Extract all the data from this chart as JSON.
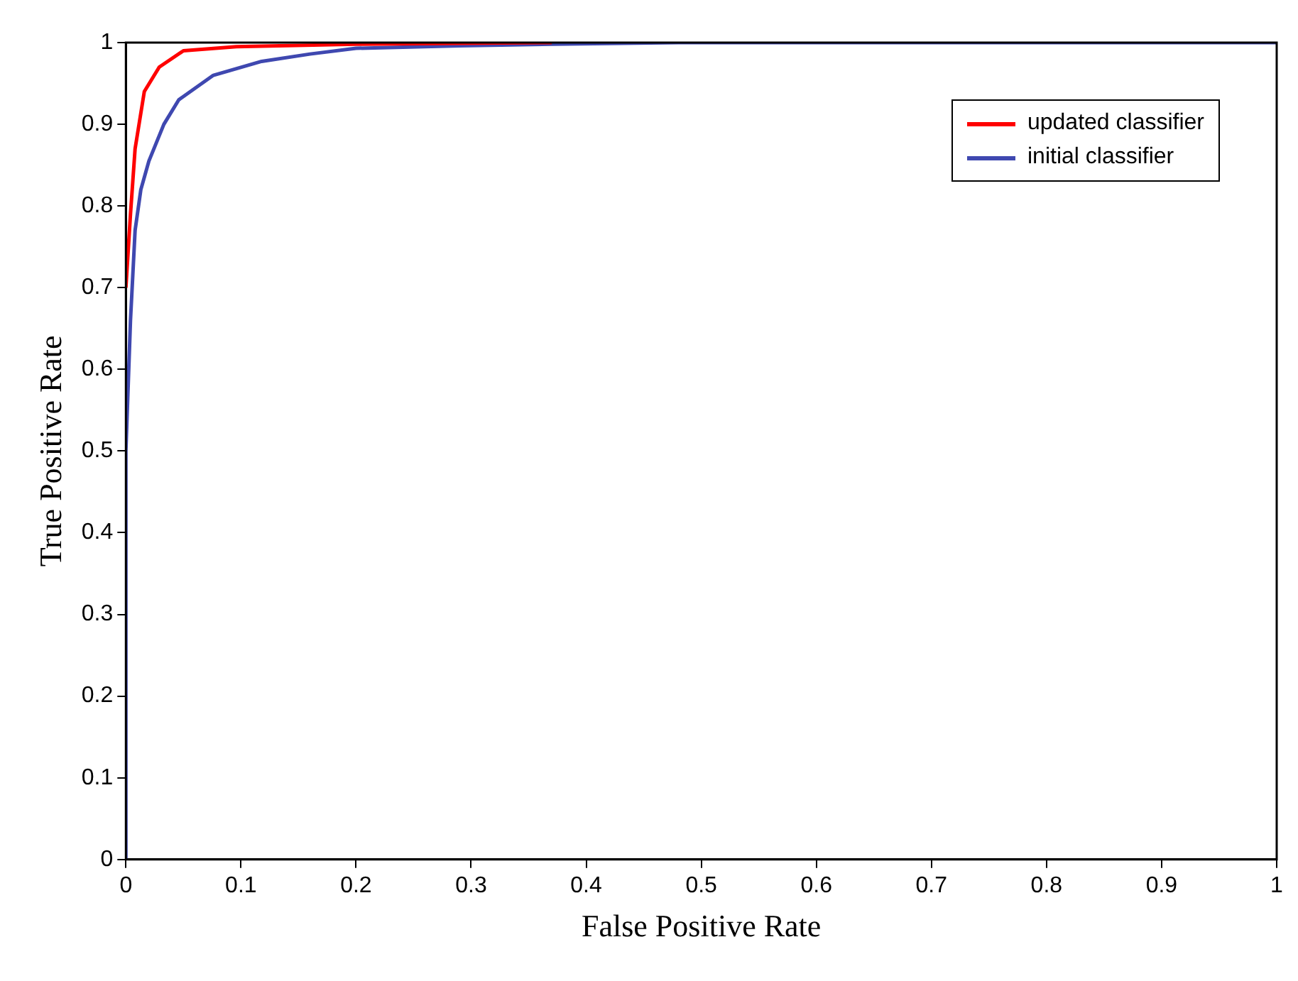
{
  "chart_data": {
    "type": "line",
    "xlabel": "False Positive Rate",
    "ylabel": "True Positive Rate",
    "xlim": [
      0,
      1
    ],
    "ylim": [
      0,
      1
    ],
    "xticks": [
      0,
      0.1,
      0.2,
      0.3,
      0.4,
      0.5,
      0.6,
      0.7,
      0.8,
      0.9,
      1
    ],
    "yticks": [
      0,
      0.1,
      0.2,
      0.3,
      0.4,
      0.5,
      0.6,
      0.7,
      0.8,
      0.9,
      1
    ],
    "grid": false,
    "legend": "top right",
    "marker": "none",
    "line_style": "solid",
    "series": [
      {
        "name": "updated classifier",
        "color": "#ff0000",
        "x": [
          0,
          0.004,
          0.008,
          0.016,
          0.029,
          0.05,
          0.096,
          0.2,
          0.37
        ],
        "values": [
          0.7,
          0.79,
          0.87,
          0.94,
          0.97,
          0.99,
          0.995,
          0.998,
          1
        ]
      },
      {
        "name": "initial classifier",
        "color": "#3f48b0",
        "x": [
          0,
          0,
          0.004,
          0.008,
          0.013,
          0.02,
          0.033,
          0.046,
          0.076,
          0.118,
          0.16,
          0.2,
          0.29,
          0.37,
          0.48,
          1
        ],
        "values": [
          0,
          0.5,
          0.66,
          0.77,
          0.82,
          0.855,
          0.9,
          0.93,
          0.96,
          0.977,
          0.986,
          0.993,
          0.996,
          0.998,
          1,
          1
        ]
      }
    ]
  }
}
